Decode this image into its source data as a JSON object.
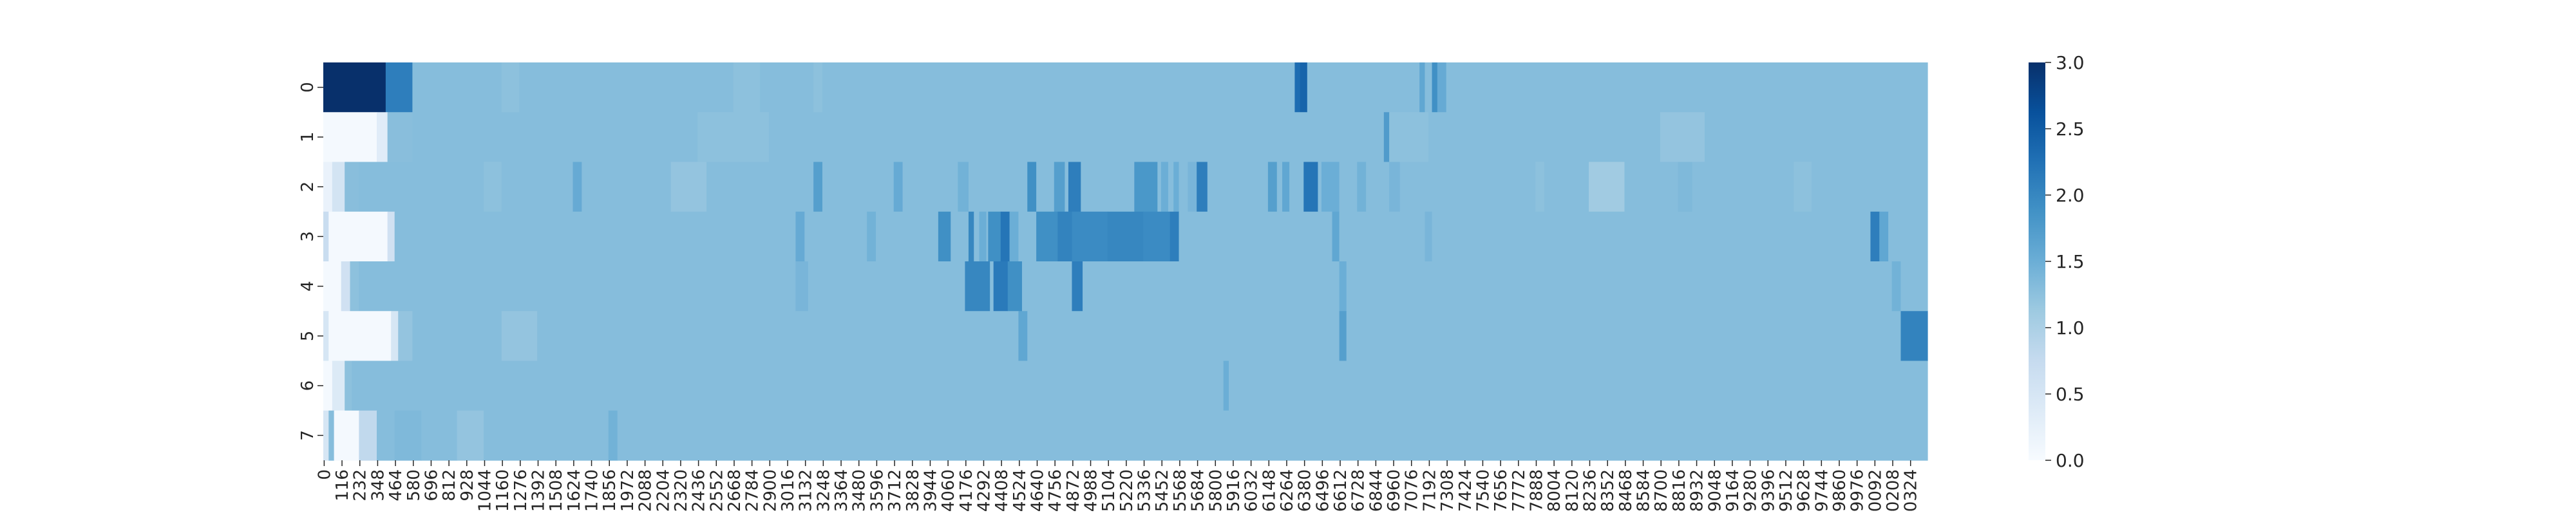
{
  "chart_data": {
    "type": "heatmap",
    "title": "",
    "xlabel": "",
    "ylabel": "",
    "x_tick_labels": [
      "0",
      "116",
      "232",
      "348",
      "464",
      "580",
      "696",
      "812",
      "928",
      "1044",
      "1160",
      "1276",
      "1392",
      "1508",
      "1624",
      "1740",
      "1856",
      "1972",
      "2088",
      "2204",
      "2320",
      "2436",
      "2552",
      "2668",
      "2784",
      "2900",
      "3016",
      "3132",
      "3248",
      "3364",
      "3480",
      "3596",
      "3712",
      "3828",
      "3944",
      "4060",
      "4176",
      "4292",
      "4408",
      "4524",
      "4640",
      "4756",
      "4872",
      "4988",
      "5104",
      "5220",
      "5336",
      "5452",
      "5568",
      "5684",
      "5800",
      "5916",
      "6032",
      "6148",
      "6264",
      "6380",
      "6496",
      "6612",
      "6728",
      "6844",
      "6960",
      "7076",
      "7192",
      "7308",
      "7424",
      "7540",
      "7656",
      "7772",
      "7888",
      "8004",
      "8120",
      "8236",
      "8352",
      "8468",
      "8584",
      "8700",
      "8816",
      "8932",
      "9048",
      "9164",
      "9280",
      "9396",
      "9512",
      "9628",
      "9744",
      "9860",
      "9976",
      "0092",
      "0208",
      "0324"
    ],
    "y_tick_labels": [
      "0",
      "1",
      "2",
      "3",
      "4",
      "5",
      "6",
      "7"
    ],
    "color_scale": {
      "min": 0.0,
      "max": 3.0,
      "ticks": [
        "0.0",
        "0.5",
        "1.0",
        "1.5",
        "2.0",
        "2.5",
        "3.0"
      ],
      "colormap": "Blues",
      "colors": [
        "#f7fbff",
        "#deebf7",
        "#c6dbef",
        "#9ecae1",
        "#6baed6",
        "#4292c6",
        "#2171b5",
        "#08519c",
        "#08306b"
      ]
    },
    "base_value": 1.3,
    "n_columns": 900,
    "rows": [
      {
        "row": "0",
        "segments": [
          [
            0,
            35,
            3.0
          ],
          [
            35,
            50,
            2.1
          ],
          [
            50,
            100,
            1.3
          ],
          [
            100,
            110,
            1.25
          ],
          [
            230,
            245,
            1.25
          ],
          [
            275,
            280,
            1.25
          ],
          [
            510,
            560,
            1.3
          ],
          [
            545,
            550,
            2.3
          ],
          [
            548,
            552,
            2.4
          ],
          [
            615,
            618,
            1.6
          ],
          [
            622,
            625,
            1.9
          ],
          [
            625,
            630,
            1.55
          ]
        ]
      },
      {
        "row": "1",
        "segments": [
          [
            0,
            30,
            0.05
          ],
          [
            30,
            36,
            0.35
          ],
          [
            36,
            50,
            1.28
          ],
          [
            50,
            210,
            1.3
          ],
          [
            210,
            250,
            1.25
          ],
          [
            595,
            598,
            1.75
          ],
          [
            598,
            620,
            1.25
          ],
          [
            750,
            775,
            1.2
          ]
        ]
      },
      {
        "row": "2",
        "segments": [
          [
            0,
            5,
            0.2
          ],
          [
            5,
            12,
            0.55
          ],
          [
            12,
            20,
            1.28
          ],
          [
            60,
            110,
            1.3
          ],
          [
            90,
            100,
            1.25
          ],
          [
            140,
            145,
            1.55
          ],
          [
            195,
            215,
            1.2
          ],
          [
            275,
            280,
            1.7
          ],
          [
            320,
            325,
            1.55
          ],
          [
            356,
            362,
            1.45
          ],
          [
            395,
            400,
            1.9
          ],
          [
            410,
            416,
            1.7
          ],
          [
            418,
            425,
            2.1
          ],
          [
            455,
            468,
            1.8
          ],
          [
            470,
            474,
            1.5
          ],
          [
            477,
            480,
            1.5
          ],
          [
            485,
            490,
            1.4
          ],
          [
            490,
            496,
            2.1
          ],
          [
            530,
            535,
            1.7
          ],
          [
            538,
            542,
            1.6
          ],
          [
            550,
            558,
            2.2
          ],
          [
            560,
            570,
            1.5
          ],
          [
            580,
            585,
            1.45
          ],
          [
            598,
            604,
            1.4
          ],
          [
            680,
            685,
            1.25
          ],
          [
            710,
            730,
            1.1
          ],
          [
            760,
            768,
            1.35
          ],
          [
            825,
            835,
            1.25
          ],
          [
            880,
            900,
            1.3
          ]
        ]
      },
      {
        "row": "3",
        "segments": [
          [
            0,
            3,
            0.7
          ],
          [
            3,
            36,
            0.05
          ],
          [
            36,
            40,
            0.6
          ],
          [
            265,
            270,
            1.55
          ],
          [
            305,
            310,
            1.45
          ],
          [
            345,
            352,
            1.9
          ],
          [
            362,
            365,
            2.0
          ],
          [
            368,
            372,
            1.5
          ],
          [
            373,
            380,
            1.9
          ],
          [
            380,
            385,
            2.2
          ],
          [
            385,
            390,
            1.5
          ],
          [
            400,
            412,
            1.9
          ],
          [
            412,
            420,
            2.05
          ],
          [
            420,
            440,
            1.95
          ],
          [
            440,
            460,
            2.0
          ],
          [
            460,
            475,
            1.95
          ],
          [
            475,
            480,
            2.1
          ],
          [
            566,
            570,
            1.6
          ],
          [
            618,
            622,
            1.4
          ],
          [
            868,
            873,
            2.1
          ],
          [
            873,
            878,
            1.6
          ],
          [
            880,
            900,
            1.3
          ]
        ]
      },
      {
        "row": "4",
        "segments": [
          [
            0,
            10,
            0.05
          ],
          [
            10,
            15,
            0.6
          ],
          [
            15,
            20,
            1.25
          ],
          [
            265,
            272,
            1.4
          ],
          [
            360,
            374,
            2.0
          ],
          [
            376,
            384,
            2.15
          ],
          [
            384,
            392,
            1.9
          ],
          [
            420,
            426,
            2.1
          ],
          [
            570,
            574,
            1.5
          ],
          [
            880,
            885,
            1.45
          ],
          [
            885,
            900,
            1.3
          ]
        ]
      },
      {
        "row": "5",
        "segments": [
          [
            0,
            3,
            0.5
          ],
          [
            3,
            38,
            0.05
          ],
          [
            38,
            42,
            0.5
          ],
          [
            42,
            50,
            1.2
          ],
          [
            100,
            120,
            1.2
          ],
          [
            390,
            395,
            1.6
          ],
          [
            570,
            574,
            1.7
          ],
          [
            885,
            900,
            2.05
          ]
        ]
      },
      {
        "row": "6",
        "segments": [
          [
            0,
            5,
            0.05
          ],
          [
            5,
            12,
            0.4
          ],
          [
            12,
            16,
            1.25
          ],
          [
            505,
            508,
            1.5
          ]
        ]
      },
      {
        "row": "7",
        "segments": [
          [
            0,
            3,
            0.5
          ],
          [
            3,
            6,
            1.3
          ],
          [
            6,
            20,
            0.05
          ],
          [
            20,
            30,
            0.8
          ],
          [
            30,
            60,
            1.3
          ],
          [
            40,
            55,
            1.35
          ],
          [
            75,
            90,
            1.2
          ],
          [
            160,
            165,
            1.45
          ]
        ]
      }
    ]
  }
}
